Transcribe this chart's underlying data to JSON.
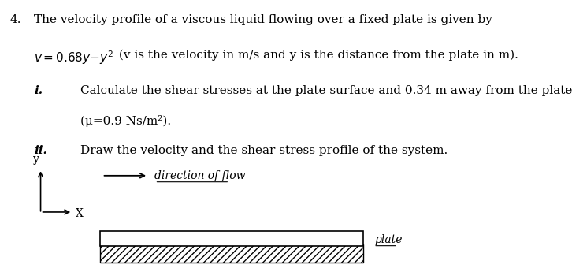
{
  "background_color": "#ffffff",
  "text_color": "#000000",
  "line1": "The velocity profile of a viscous liquid flowing over a fixed plate is given by",
  "line2_rest": " (v is the velocity in m/s and y is the distance from the plate in m).",
  "sub_i_label": "i.",
  "sub_i_text1": "Calculate the shear stresses at the plate surface and 0.34 m away from the plate",
  "sub_i_text2": "(μ=0.9 Ns/m²).",
  "sub_ii_label": "ii.",
  "sub_ii_text": "Draw the velocity and the shear stress profile of the system.",
  "flow_arrow_label": "direction of flow",
  "plate_label": "plate",
  "diagram_y_label": "y",
  "diagram_x_label": "X",
  "font_size_main": 11,
  "font_size_diagram": 10
}
